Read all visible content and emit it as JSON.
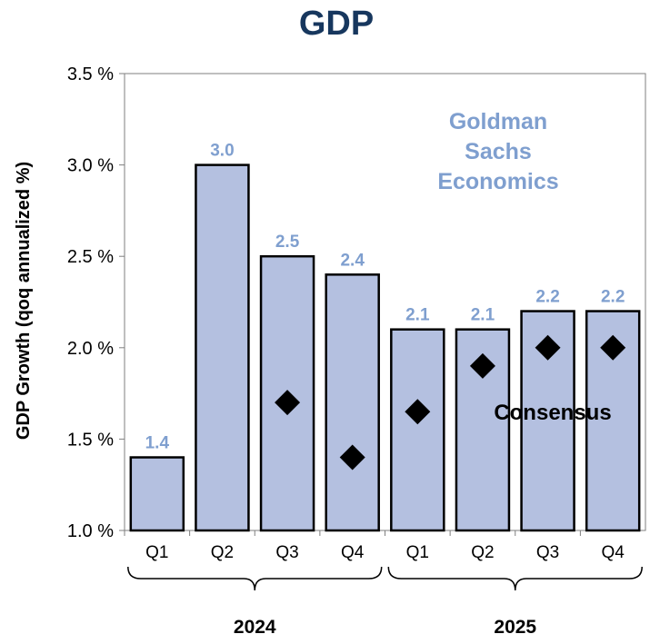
{
  "chart_data": {
    "type": "bar",
    "title": "GDP",
    "ylabel": "GDP Growth (qoq annualized %)",
    "xlabel": "",
    "ylim": [
      1.0,
      3.5
    ],
    "yticks": [
      1.0,
      1.5,
      2.0,
      2.5,
      3.0,
      3.5
    ],
    "ytick_labels": [
      "1.0 %",
      "1.5 %",
      "2.0 %",
      "2.5 %",
      "3.0 %",
      "3.5 %"
    ],
    "categories": [
      "Q1",
      "Q2",
      "Q3",
      "Q4",
      "Q1",
      "Q2",
      "Q3",
      "Q4"
    ],
    "groups": [
      {
        "label": "2024",
        "start": 0,
        "end": 3
      },
      {
        "label": "2025",
        "start": 4,
        "end": 7
      }
    ],
    "series": [
      {
        "name": "Goldman Sachs Economics",
        "kind": "bar",
        "values": [
          1.4,
          3.0,
          2.5,
          2.4,
          2.1,
          2.1,
          2.2,
          2.2
        ],
        "labels": [
          "1.4",
          "3.0",
          "2.5",
          "2.4",
          "2.1",
          "2.1",
          "2.2",
          "2.2"
        ]
      },
      {
        "name": "Consensus",
        "kind": "marker",
        "values": [
          null,
          null,
          1.7,
          1.4,
          1.65,
          1.9,
          2.0,
          2.0
        ]
      }
    ],
    "annotations": {
      "gs_lines": [
        "Goldman",
        "Sachs",
        "Economics"
      ],
      "consensus_label": "Consensus"
    },
    "colors": {
      "bar_fill": "#b4c0e0",
      "bar_stroke": "#000000",
      "value_label": "#7f9fcf",
      "title": "#17375e",
      "marker": "#000000",
      "axis": "#7f7f7f"
    }
  }
}
